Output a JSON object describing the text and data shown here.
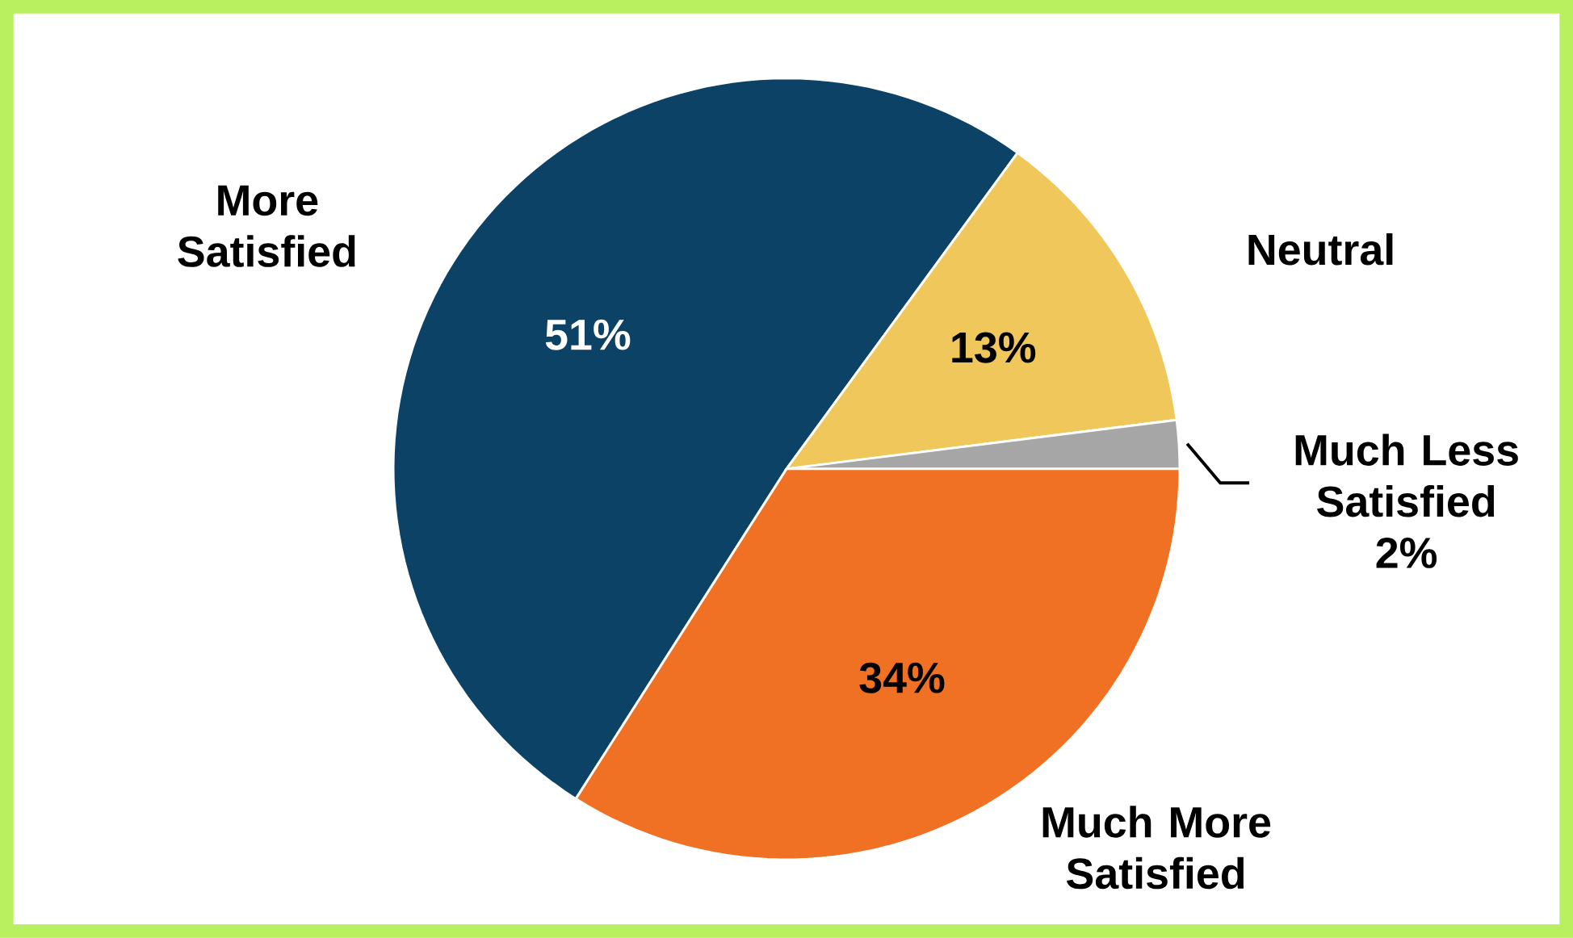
{
  "chart_data": {
    "type": "pie",
    "categories": [
      "More Satisfied",
      "Neutral",
      "Much Less Satisfied",
      "Much More Satisfied"
    ],
    "values": [
      51,
      13,
      2,
      34
    ],
    "value_labels": [
      "51%",
      "13%",
      "2%",
      "34%"
    ],
    "colors": [
      "#0b4266",
      "#f0c75a",
      "#a6a6a6",
      "#f07024"
    ]
  }
}
